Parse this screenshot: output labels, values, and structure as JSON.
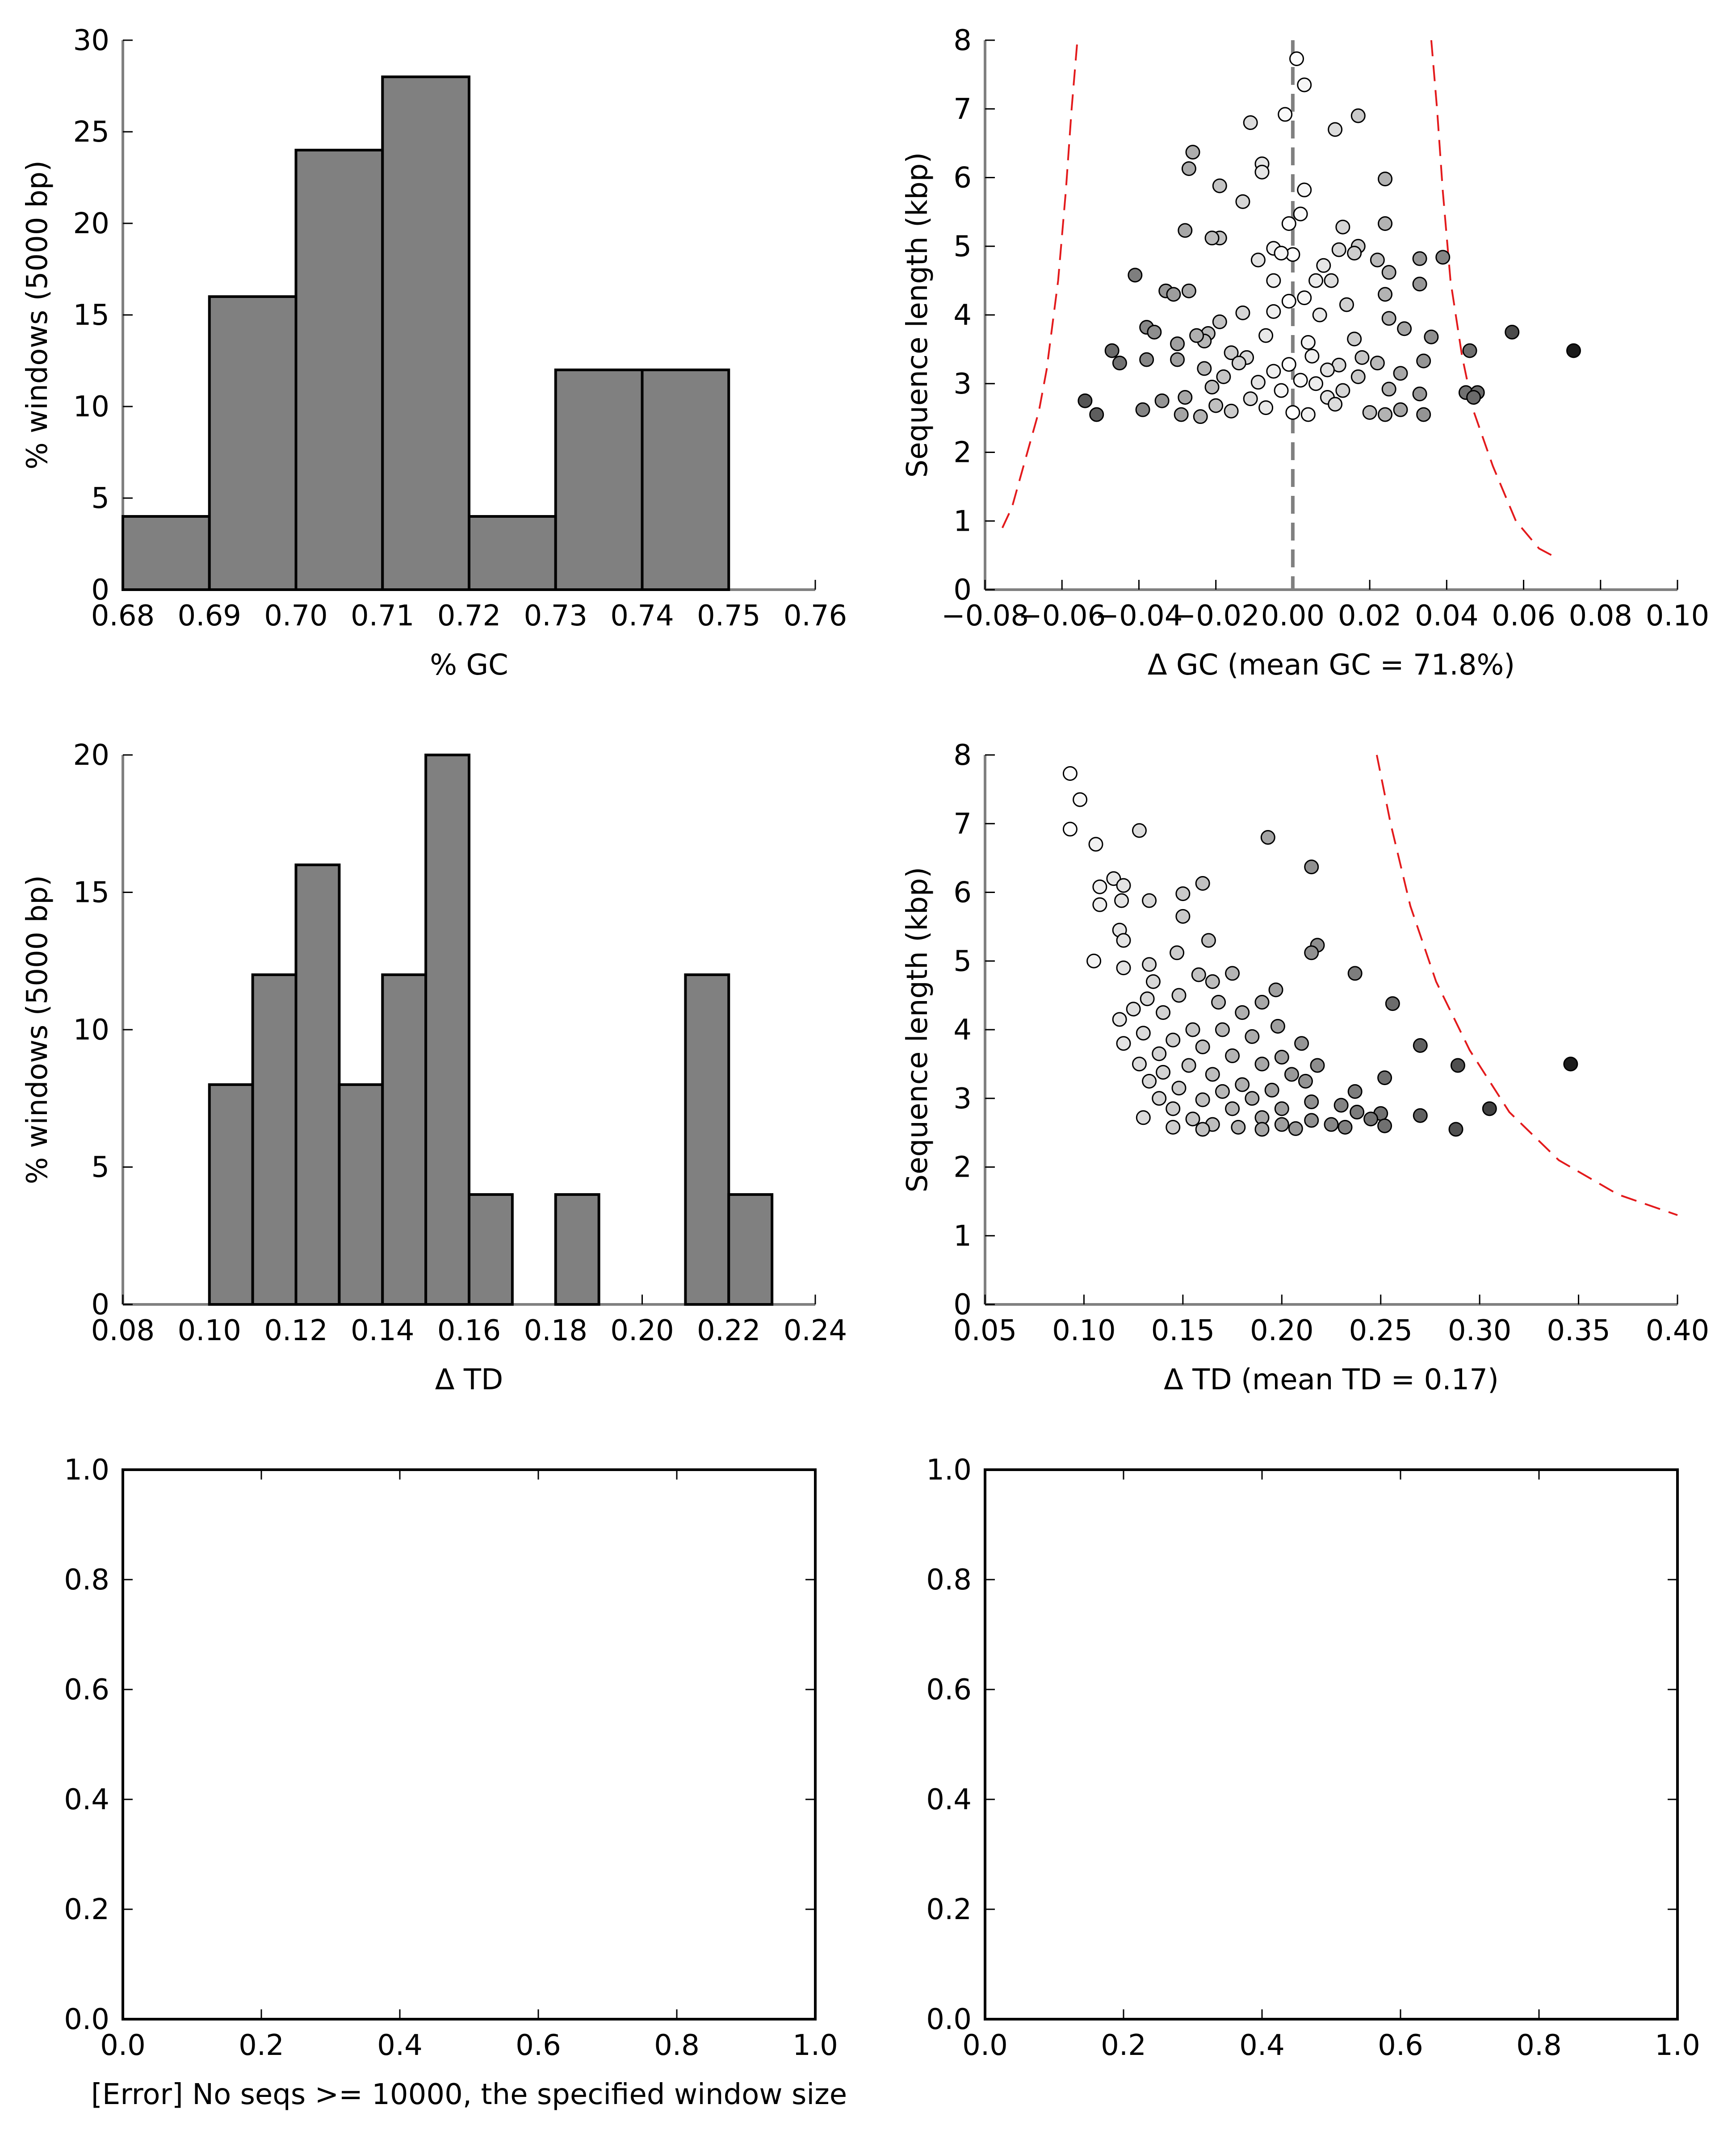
{
  "colors": {
    "bar_fill": "#808080",
    "bar_edge": "#000000",
    "envelope": "#e31a1c",
    "mean_line": "#808080",
    "point_edge": "#000000"
  },
  "chart_data": [
    {
      "type": "bar",
      "xlabel": "% GC",
      "ylabel": "% windows (5000 bp)",
      "xlim": [
        0.68,
        0.76
      ],
      "ylim": [
        0,
        30
      ],
      "xticks": [
        "0.68",
        "0.69",
        "0.70",
        "0.71",
        "0.72",
        "0.73",
        "0.74",
        "0.75",
        "0.76"
      ],
      "yticks": [
        "0",
        "5",
        "10",
        "15",
        "20",
        "25",
        "30"
      ],
      "bins": [
        {
          "x0": 0.68,
          "x1": 0.69,
          "value": 4
        },
        {
          "x0": 0.69,
          "x1": 0.7,
          "value": 16
        },
        {
          "x0": 0.7,
          "x1": 0.71,
          "value": 24
        },
        {
          "x0": 0.71,
          "x1": 0.72,
          "value": 28
        },
        {
          "x0": 0.72,
          "x1": 0.73,
          "value": 4
        },
        {
          "x0": 0.73,
          "x1": 0.74,
          "value": 12
        },
        {
          "x0": 0.74,
          "x1": 0.75,
          "value": 12
        }
      ]
    },
    {
      "type": "scatter",
      "xlabel": "Δ GC (mean GC = 71.8%)",
      "ylabel": "Sequence length (kbp)",
      "xlim": [
        -0.08,
        0.1
      ],
      "ylim": [
        0,
        8
      ],
      "xticks": [
        "−0.08",
        "−0.06",
        "−0.04",
        "−0.02",
        "0.00",
        "0.02",
        "0.04",
        "0.06",
        "0.08",
        "0.10"
      ],
      "yticks": [
        "0",
        "1",
        "2",
        "3",
        "4",
        "5",
        "6",
        "7",
        "8"
      ],
      "mean_line_x": 0.0,
      "envelope": [
        [
          [
            -0.0755,
            0.9
          ],
          [
            -0.073,
            1.2
          ],
          [
            -0.07,
            1.8
          ],
          [
            -0.066,
            2.6
          ],
          [
            -0.064,
            3.2
          ],
          [
            -0.061,
            4.5
          ],
          [
            -0.059,
            5.8
          ],
          [
            -0.0575,
            7.0
          ],
          [
            -0.056,
            8.0
          ]
        ],
        [
          [
            0.036,
            8.0
          ],
          [
            0.0375,
            7.0
          ],
          [
            0.039,
            5.8
          ],
          [
            0.041,
            4.5
          ],
          [
            0.044,
            3.4
          ],
          [
            0.047,
            2.6
          ],
          [
            0.052,
            1.8
          ],
          [
            0.058,
            1.0
          ],
          [
            0.064,
            0.6
          ],
          [
            0.069,
            0.45
          ]
        ]
      ],
      "points": [
        [
          0.001,
          7.73
        ],
        [
          0.003,
          7.35
        ],
        [
          -0.002,
          6.92
        ],
        [
          0.017,
          6.9
        ],
        [
          -0.011,
          6.8
        ],
        [
          0.011,
          6.7
        ],
        [
          -0.026,
          6.37
        ],
        [
          -0.027,
          6.13
        ],
        [
          -0.008,
          6.2
        ],
        [
          -0.008,
          6.08
        ],
        [
          0.024,
          5.98
        ],
        [
          0.003,
          5.82
        ],
        [
          -0.019,
          5.88
        ],
        [
          -0.013,
          5.65
        ],
        [
          0.002,
          5.47
        ],
        [
          -0.001,
          5.33
        ],
        [
          0.024,
          5.33
        ],
        [
          0.013,
          5.28
        ],
        [
          -0.028,
          5.23
        ],
        [
          -0.019,
          5.12
        ],
        [
          -0.021,
          5.12
        ],
        [
          0.017,
          5.0
        ],
        [
          0.012,
          4.95
        ],
        [
          -0.005,
          4.97
        ],
        [
          0.0,
          4.88
        ],
        [
          -0.003,
          4.9
        ],
        [
          0.039,
          4.84
        ],
        [
          0.016,
          4.9
        ],
        [
          0.033,
          4.82
        ],
        [
          -0.009,
          4.8
        ],
        [
          0.022,
          4.8
        ],
        [
          0.008,
          4.72
        ],
        [
          0.025,
          4.62
        ],
        [
          -0.041,
          4.58
        ],
        [
          0.006,
          4.5
        ],
        [
          -0.005,
          4.5
        ],
        [
          0.01,
          4.5
        ],
        [
          -0.027,
          4.35
        ],
        [
          -0.033,
          4.35
        ],
        [
          -0.031,
          4.3
        ],
        [
          0.033,
          4.45
        ],
        [
          0.024,
          4.3
        ],
        [
          0.003,
          4.25
        ],
        [
          -0.001,
          4.2
        ],
        [
          0.014,
          4.15
        ],
        [
          -0.013,
          4.03
        ],
        [
          -0.005,
          4.05
        ],
        [
          0.007,
          4.0
        ],
        [
          -0.019,
          3.9
        ],
        [
          0.025,
          3.95
        ],
        [
          -0.038,
          3.82
        ],
        [
          -0.036,
          3.75
        ],
        [
          0.029,
          3.8
        ],
        [
          0.036,
          3.68
        ],
        [
          0.057,
          3.75
        ],
        [
          -0.022,
          3.73
        ],
        [
          -0.023,
          3.62
        ],
        [
          -0.03,
          3.58
        ],
        [
          -0.025,
          3.7
        ],
        [
          -0.007,
          3.7
        ],
        [
          0.016,
          3.65
        ],
        [
          0.004,
          3.6
        ],
        [
          -0.016,
          3.45
        ],
        [
          -0.047,
          3.48
        ],
        [
          0.046,
          3.48
        ],
        [
          -0.012,
          3.38
        ],
        [
          0.005,
          3.4
        ],
        [
          0.018,
          3.38
        ],
        [
          -0.03,
          3.35
        ],
        [
          -0.038,
          3.35
        ],
        [
          0.034,
          3.33
        ],
        [
          -0.014,
          3.3
        ],
        [
          -0.001,
          3.28
        ],
        [
          0.022,
          3.3
        ],
        [
          0.012,
          3.27
        ],
        [
          -0.045,
          3.3
        ],
        [
          -0.023,
          3.22
        ],
        [
          0.009,
          3.2
        ],
        [
          -0.005,
          3.18
        ],
        [
          0.028,
          3.15
        ],
        [
          -0.018,
          3.1
        ],
        [
          0.002,
          3.05
        ],
        [
          0.017,
          3.1
        ],
        [
          -0.009,
          3.02
        ],
        [
          0.006,
          3.0
        ],
        [
          -0.021,
          2.95
        ],
        [
          0.025,
          2.92
        ],
        [
          -0.003,
          2.9
        ],
        [
          0.013,
          2.9
        ],
        [
          0.045,
          2.87
        ],
        [
          0.033,
          2.85
        ],
        [
          0.048,
          2.87
        ],
        [
          -0.028,
          2.8
        ],
        [
          -0.011,
          2.78
        ],
        [
          0.009,
          2.8
        ],
        [
          0.047,
          2.8
        ],
        [
          -0.034,
          2.75
        ],
        [
          0.073,
          3.48
        ],
        [
          -0.054,
          2.75
        ],
        [
          -0.039,
          2.62
        ],
        [
          -0.02,
          2.68
        ],
        [
          -0.007,
          2.65
        ],
        [
          0.011,
          2.7
        ],
        [
          0.028,
          2.62
        ],
        [
          -0.051,
          2.55
        ],
        [
          -0.029,
          2.55
        ],
        [
          -0.016,
          2.6
        ],
        [
          0.0,
          2.58
        ],
        [
          0.02,
          2.58
        ],
        [
          0.034,
          2.55
        ],
        [
          -0.024,
          2.52
        ],
        [
          0.004,
          2.55
        ],
        [
          0.024,
          2.55
        ]
      ]
    },
    {
      "type": "bar",
      "xlabel": "Δ TD",
      "ylabel": "% windows (5000 bp)",
      "xlim": [
        0.08,
        0.24
      ],
      "ylim": [
        0,
        20
      ],
      "xticks": [
        "0.08",
        "0.10",
        "0.12",
        "0.14",
        "0.16",
        "0.18",
        "0.20",
        "0.22",
        "0.24"
      ],
      "yticks": [
        "0",
        "5",
        "10",
        "15",
        "20"
      ],
      "bins": [
        {
          "x0": 0.1,
          "x1": 0.11,
          "value": 8
        },
        {
          "x0": 0.11,
          "x1": 0.12,
          "value": 12
        },
        {
          "x0": 0.12,
          "x1": 0.13,
          "value": 16
        },
        {
          "x0": 0.13,
          "x1": 0.14,
          "value": 8
        },
        {
          "x0": 0.14,
          "x1": 0.15,
          "value": 12
        },
        {
          "x0": 0.15,
          "x1": 0.16,
          "value": 20
        },
        {
          "x0": 0.16,
          "x1": 0.17,
          "value": 4
        },
        {
          "x0": 0.18,
          "x1": 0.19,
          "value": 4
        },
        {
          "x0": 0.21,
          "x1": 0.22,
          "value": 12
        },
        {
          "x0": 0.22,
          "x1": 0.23,
          "value": 4
        }
      ]
    },
    {
      "type": "scatter",
      "xlabel": "Δ TD (mean TD = 0.17)",
      "ylabel": "Sequence length (kbp)",
      "xlim": [
        0.05,
        0.4
      ],
      "ylim": [
        0,
        8
      ],
      "xticks": [
        "0.05",
        "0.10",
        "0.15",
        "0.20",
        "0.25",
        "0.30",
        "0.35",
        "0.40"
      ],
      "yticks": [
        "0",
        "1",
        "2",
        "3",
        "4",
        "5",
        "6",
        "7",
        "8"
      ],
      "envelope": [
        [
          [
            0.248,
            8.0
          ],
          [
            0.255,
            7.0
          ],
          [
            0.265,
            5.8
          ],
          [
            0.278,
            4.7
          ],
          [
            0.295,
            3.7
          ],
          [
            0.315,
            2.8
          ],
          [
            0.34,
            2.1
          ],
          [
            0.37,
            1.6
          ],
          [
            0.4,
            1.3
          ]
        ]
      ],
      "points": [
        [
          0.093,
          7.73
        ],
        [
          0.098,
          7.35
        ],
        [
          0.093,
          6.92
        ],
        [
          0.128,
          6.9
        ],
        [
          0.193,
          6.8
        ],
        [
          0.106,
          6.7
        ],
        [
          0.215,
          6.37
        ],
        [
          0.115,
          6.2
        ],
        [
          0.108,
          6.08
        ],
        [
          0.12,
          6.1
        ],
        [
          0.16,
          6.13
        ],
        [
          0.108,
          5.82
        ],
        [
          0.119,
          5.88
        ],
        [
          0.15,
          5.98
        ],
        [
          0.133,
          5.88
        ],
        [
          0.118,
          5.45
        ],
        [
          0.15,
          5.65
        ],
        [
          0.12,
          5.3
        ],
        [
          0.163,
          5.3
        ],
        [
          0.218,
          5.23
        ],
        [
          0.215,
          5.12
        ],
        [
          0.147,
          5.12
        ],
        [
          0.105,
          5.0
        ],
        [
          0.133,
          4.95
        ],
        [
          0.12,
          4.9
        ],
        [
          0.158,
          4.8
        ],
        [
          0.175,
          4.82
        ],
        [
          0.237,
          4.82
        ],
        [
          0.165,
          4.7
        ],
        [
          0.135,
          4.7
        ],
        [
          0.197,
          4.58
        ],
        [
          0.148,
          4.5
        ],
        [
          0.132,
          4.45
        ],
        [
          0.168,
          4.4
        ],
        [
          0.19,
          4.4
        ],
        [
          0.256,
          4.38
        ],
        [
          0.125,
          4.3
        ],
        [
          0.14,
          4.25
        ],
        [
          0.18,
          4.25
        ],
        [
          0.118,
          4.15
        ],
        [
          0.155,
          4.0
        ],
        [
          0.17,
          4.0
        ],
        [
          0.198,
          4.05
        ],
        [
          0.13,
          3.95
        ],
        [
          0.145,
          3.85
        ],
        [
          0.185,
          3.9
        ],
        [
          0.12,
          3.8
        ],
        [
          0.16,
          3.75
        ],
        [
          0.21,
          3.8
        ],
        [
          0.27,
          3.77
        ],
        [
          0.138,
          3.65
        ],
        [
          0.175,
          3.62
        ],
        [
          0.2,
          3.6
        ],
        [
          0.128,
          3.5
        ],
        [
          0.153,
          3.48
        ],
        [
          0.19,
          3.5
        ],
        [
          0.218,
          3.48
        ],
        [
          0.289,
          3.48
        ],
        [
          0.346,
          3.5
        ],
        [
          0.14,
          3.38
        ],
        [
          0.165,
          3.35
        ],
        [
          0.205,
          3.35
        ],
        [
          0.133,
          3.25
        ],
        [
          0.18,
          3.2
        ],
        [
          0.212,
          3.25
        ],
        [
          0.148,
          3.15
        ],
        [
          0.17,
          3.1
        ],
        [
          0.195,
          3.12
        ],
        [
          0.237,
          3.1
        ],
        [
          0.252,
          3.3
        ],
        [
          0.138,
          3.0
        ],
        [
          0.16,
          2.98
        ],
        [
          0.185,
          3.0
        ],
        [
          0.215,
          2.95
        ],
        [
          0.23,
          2.9
        ],
        [
          0.145,
          2.85
        ],
        [
          0.175,
          2.85
        ],
        [
          0.2,
          2.85
        ],
        [
          0.305,
          2.85
        ],
        [
          0.238,
          2.8
        ],
        [
          0.25,
          2.78
        ],
        [
          0.13,
          2.72
        ],
        [
          0.155,
          2.7
        ],
        [
          0.19,
          2.72
        ],
        [
          0.215,
          2.68
        ],
        [
          0.27,
          2.75
        ],
        [
          0.245,
          2.7
        ],
        [
          0.165,
          2.62
        ],
        [
          0.2,
          2.62
        ],
        [
          0.225,
          2.62
        ],
        [
          0.145,
          2.58
        ],
        [
          0.178,
          2.58
        ],
        [
          0.207,
          2.56
        ],
        [
          0.232,
          2.58
        ],
        [
          0.252,
          2.6
        ],
        [
          0.288,
          2.55
        ],
        [
          0.16,
          2.55
        ],
        [
          0.19,
          2.55
        ]
      ]
    },
    {
      "type": "scatter",
      "xlabel": "[Error] No seqs >= 10000, the specified window size",
      "ylabel": "",
      "xlim": [
        0,
        1
      ],
      "ylim": [
        0,
        1
      ],
      "xticks": [
        "0.0",
        "0.2",
        "0.4",
        "0.6",
        "0.8",
        "1.0"
      ],
      "yticks": [
        "0.0",
        "0.2",
        "0.4",
        "0.6",
        "0.8",
        "1.0"
      ],
      "points": []
    },
    {
      "type": "scatter",
      "xlabel": "",
      "ylabel": "",
      "xlim": [
        0,
        1
      ],
      "ylim": [
        0,
        1
      ],
      "xticks": [
        "0.0",
        "0.2",
        "0.4",
        "0.6",
        "0.8",
        "1.0"
      ],
      "yticks": [
        "0.0",
        "0.2",
        "0.4",
        "0.6",
        "0.8",
        "1.0"
      ],
      "points": []
    }
  ]
}
